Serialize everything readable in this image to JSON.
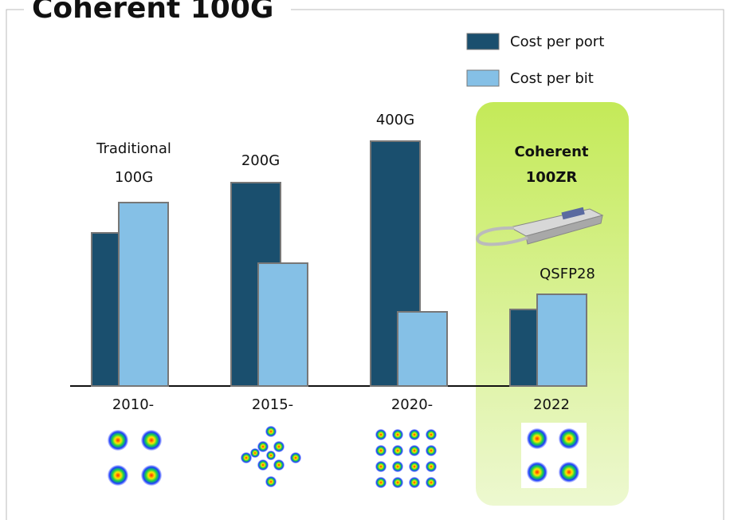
{
  "chart_data": {
    "type": "bar",
    "title": "Coherent 100G",
    "categories": [
      "2010-",
      "2015-",
      "2020-",
      "2022"
    ],
    "series": [
      {
        "name": "Cost per port",
        "color": "#1a4f6e",
        "values": [
          192,
          255,
          307,
          96
        ]
      },
      {
        "name": "Cost per bit",
        "color": "#85c0e6",
        "values": [
          230,
          154,
          93,
          115
        ]
      }
    ],
    "ylim": [
      0,
      320
    ],
    "annotations": [
      "Traditional",
      "100G",
      "200G",
      "400G",
      "QSFP28"
    ],
    "highlight_label": [
      "Coherent",
      "100ZR"
    ]
  }
}
